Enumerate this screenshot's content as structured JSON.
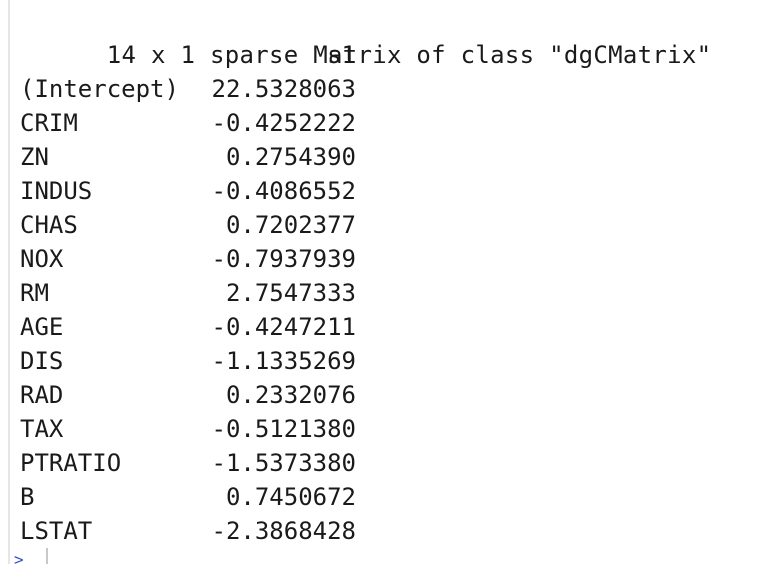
{
  "console": {
    "matrix_header": "14 x 1 sparse Matrix of class \"dgCMatrix\"",
    "column_name": "s1",
    "rows": [
      {
        "name": "(Intercept)",
        "value": "22.5328063"
      },
      {
        "name": "CRIM",
        "value": "-0.4252222"
      },
      {
        "name": "ZN",
        "value": "0.2754390"
      },
      {
        "name": "INDUS",
        "value": "-0.4086552"
      },
      {
        "name": "CHAS",
        "value": "0.7202377"
      },
      {
        "name": "NOX",
        "value": "-0.7937939"
      },
      {
        "name": "RM",
        "value": "2.7547333"
      },
      {
        "name": "AGE",
        "value": "-0.4247211"
      },
      {
        "name": "DIS",
        "value": "-1.1335269"
      },
      {
        "name": "RAD",
        "value": "0.2332076"
      },
      {
        "name": "TAX",
        "value": "-0.5121380"
      },
      {
        "name": "PTRATIO",
        "value": "-1.5373380"
      },
      {
        "name": "B",
        "value": "0.7450672"
      },
      {
        "name": "LSTAT",
        "value": "-2.3868428"
      }
    ],
    "prompt_symbol": ">"
  },
  "colors": {
    "background": "#ffffff",
    "text": "#1a1a1a",
    "prompt": "#2f4fd0"
  }
}
